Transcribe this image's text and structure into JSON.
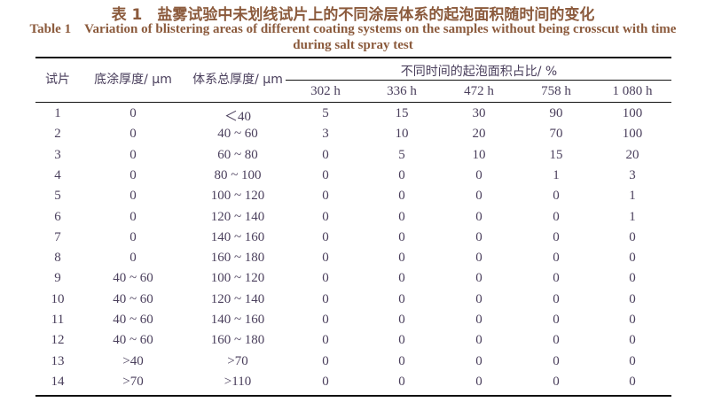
{
  "title_cn": "表 1　盐雾试验中未划线试片上的不同涂层体系的起泡面积随时间的变化",
  "title_en_line1": "Table 1　Variation of blistering areas of different coating systems on the samples without being crosscut with time",
  "title_en_line2": "during salt spray test",
  "headers": {
    "sample": "试片",
    "primer": "底涂厚度/ μm",
    "total": "体系总厚度/ μm",
    "group": "不同时间的起泡面积占比/ %",
    "times": [
      "302 h",
      "336 h",
      "472 h",
      "758 h",
      "1 080 h"
    ]
  },
  "rows": [
    [
      "1",
      "0",
      "＜40",
      "5",
      "15",
      "30",
      "90",
      "100"
    ],
    [
      "2",
      "0",
      "40 ~ 60",
      "3",
      "10",
      "20",
      "70",
      "100"
    ],
    [
      "3",
      "0",
      "60 ~ 80",
      "0",
      "5",
      "10",
      "15",
      "20"
    ],
    [
      "4",
      "0",
      "80 ~ 100",
      "0",
      "0",
      "0",
      "1",
      "3"
    ],
    [
      "5",
      "0",
      "100 ~ 120",
      "0",
      "0",
      "0",
      "0",
      "1"
    ],
    [
      "6",
      "0",
      "120 ~ 140",
      "0",
      "0",
      "0",
      "0",
      "1"
    ],
    [
      "7",
      "0",
      "140 ~ 160",
      "0",
      "0",
      "0",
      "0",
      "0"
    ],
    [
      "8",
      "0",
      "160 ~ 180",
      "0",
      "0",
      "0",
      "0",
      "0"
    ],
    [
      "9",
      "40 ~ 60",
      "100 ~ 120",
      "0",
      "0",
      "0",
      "0",
      "0"
    ],
    [
      "10",
      "40 ~ 60",
      "120 ~ 140",
      "0",
      "0",
      "0",
      "0",
      "0"
    ],
    [
      "11",
      "40 ~ 60",
      "140 ~ 160",
      "0",
      "0",
      "0",
      "0",
      "0"
    ],
    [
      "12",
      "40 ~ 60",
      "160 ~ 180",
      "0",
      "0",
      "0",
      "0",
      "0"
    ],
    [
      "13",
      ">40",
      ">70",
      "0",
      "0",
      "0",
      "0",
      "0"
    ],
    [
      "14",
      ">70",
      ">110",
      "0",
      "0",
      "0",
      "0",
      "0"
    ]
  ]
}
